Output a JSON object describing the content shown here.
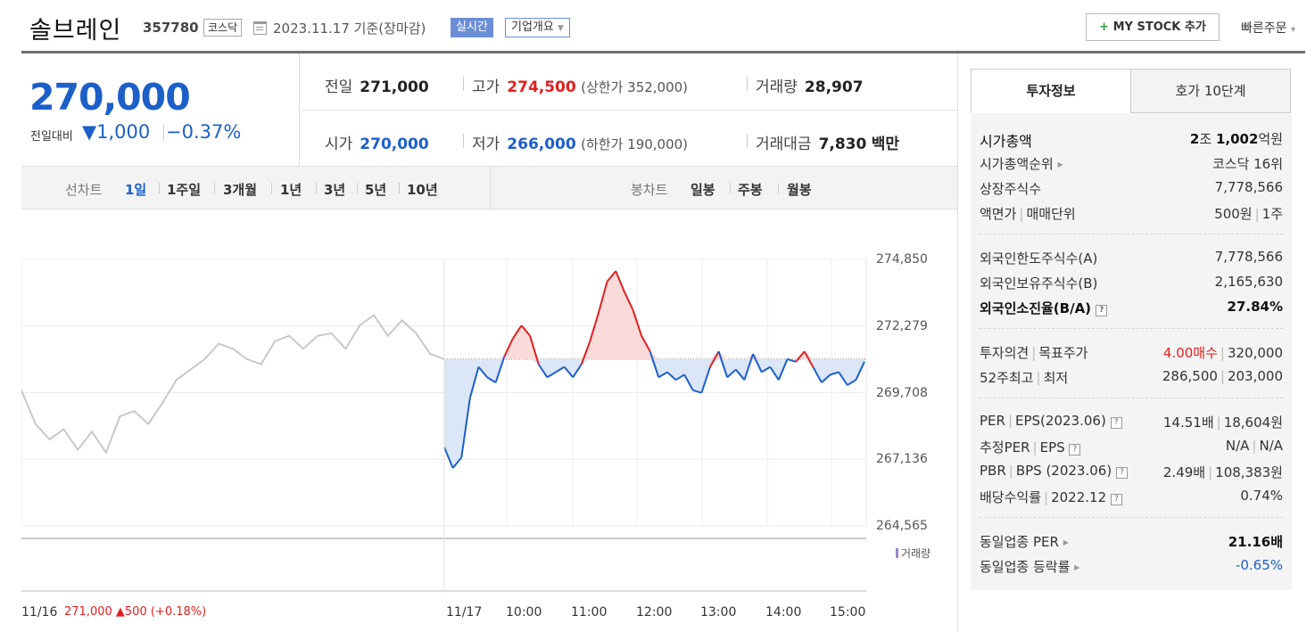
{
  "header": {
    "name": "솔브레인",
    "code": "357780",
    "market": "코스닥",
    "date": "2023.11.17  기준(장마감)",
    "realtime": "실시간",
    "company_overview": "기업개요",
    "my_stock": "MY STOCK 추가",
    "quick_order": "빠른주문"
  },
  "summary": {
    "price": "270,000",
    "change_label": "전일대비",
    "change_value": "▼1,000",
    "change_pct": "−0.37%"
  },
  "quotes": {
    "prev_label": "전일",
    "prev": "271,000",
    "high_label": "고가",
    "high": "274,500",
    "upper_limit": "(상한가 352,000)",
    "volume_label": "거래량",
    "volume": "28,907",
    "open_label": "시가",
    "open": "270,000",
    "low_label": "저가",
    "low": "266,000",
    "lower_limit": "(하한가 190,000)",
    "value_label": "거래대금",
    "value": "7,830",
    "value_unit": "백만"
  },
  "chart_tabs": {
    "line_label": "선차트",
    "line_periods": [
      "1일",
      "1주일",
      "3개월",
      "1년",
      "3년",
      "5년",
      "10년"
    ],
    "candle_label": "봉차트",
    "candle_periods": [
      "일봉",
      "주봉",
      "월봉"
    ]
  },
  "chart_data": {
    "type": "line",
    "title": "",
    "y_ticks": [
      "274,850",
      "272,279",
      "269,708",
      "267,136",
      "264,565"
    ],
    "ylim": [
      264565,
      274850
    ],
    "x_ticks": [
      "11/16",
      "11/17",
      "10:00",
      "11:00",
      "12:00",
      "13:00",
      "14:00",
      "15:00"
    ],
    "baseline": 271000,
    "series": [
      {
        "values": [
          269800,
          268500,
          267900,
          268300,
          267500,
          268200,
          267400,
          268800,
          269000,
          268500,
          269300,
          270200,
          270600,
          271000,
          271600,
          271400,
          271000,
          270800,
          271700,
          271900,
          271400,
          271900,
          272000,
          271400,
          272300,
          272700,
          271900,
          272500,
          272000,
          271200,
          271000
        ]
      },
      {
        "values": [
          267600,
          266800,
          267200,
          269500,
          270700,
          270300,
          270100,
          271100,
          271800,
          272300,
          271900,
          270800,
          270300,
          270500,
          270700,
          270300,
          270800,
          271700,
          272800,
          274000,
          274400,
          273600,
          272900,
          271900,
          271300,
          270300,
          270500,
          270200,
          270400,
          269800,
          269700,
          270700,
          271300,
          270300,
          270600,
          270200,
          271200,
          270500,
          270700,
          270200,
          271000,
          270900,
          271300,
          270700,
          270100,
          270400,
          270500,
          270000,
          270200,
          270900
        ]
      }
    ],
    "volume_legend": "거래량",
    "prev_close_text": "271,000",
    "prev_close_change": "▲500 (+0.18%)"
  },
  "invest": {
    "tab_on": "투자정보",
    "tab_off": "호가 10단계",
    "rows": [
      {
        "k": "시가총액",
        "v_html": "2조 1,002억원"
      },
      {
        "k": "시가총액순위",
        "v": "코스닥 16위"
      },
      {
        "k": "상장주식수",
        "v": "7,778,566"
      },
      {
        "k": "액면가",
        "k2": "매매단위",
        "v": "500원",
        "v2": "1주"
      },
      {
        "k": "외국인한도주식수(A)",
        "v": "7,778,566"
      },
      {
        "k": "외국인보유주식수(B)",
        "v": "2,165,630"
      },
      {
        "k": "외국인소진율(B/A)",
        "v": "27.84%"
      },
      {
        "k": "투자의견",
        "k2": "목표주가",
        "v": "4.00매수",
        "v2": "320,000"
      },
      {
        "k": "52주최고",
        "k2": "최저",
        "v": "286,500",
        "v2": "203,000"
      },
      {
        "k": "PER",
        "k2": "EPS(2023.06)",
        "v": "14.51배",
        "v2": "18,604원"
      },
      {
        "k": "추정PER",
        "k2": "EPS",
        "v": "N/A",
        "v2": "N/A"
      },
      {
        "k": "PBR",
        "k2": "BPS (2023.06)",
        "v": "2.49배",
        "v2": "108,383원"
      },
      {
        "k": "배당수익률",
        "k2": "2022.12",
        "v": "0.74%"
      },
      {
        "k": "동일업종 PER",
        "v": "21.16배"
      },
      {
        "k": "동일업종 등락률",
        "v": "-0.65%"
      }
    ]
  },
  "colors": {
    "up": "#e02020",
    "down": "#1d5fc9",
    "accent": "#6b8ed6"
  }
}
